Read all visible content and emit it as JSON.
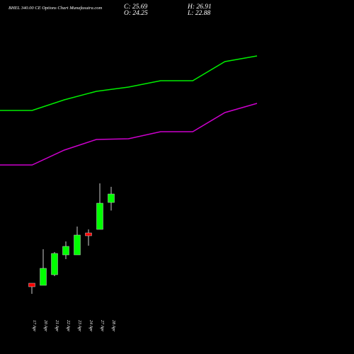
{
  "chart_data": {
    "type": "candlestick",
    "title": "BHEL 340.00 CE Options Chart Munafasutra.com",
    "ohlc_labels": {
      "close": "C: 25.69",
      "high": "H: 26.91",
      "open": "O: 24.25",
      "low": "L: 22.88"
    },
    "categories": [
      "17 Apr",
      "20 Apr",
      "21 Apr",
      "22 Apr",
      "23 Apr",
      "24 Apr",
      "27 Apr",
      "28 Apr"
    ],
    "open": [
      10.57,
      10.21,
      12.01,
      15.37,
      15.37,
      19.09,
      19.69,
      24.25
    ],
    "high": [
      10.57,
      16.33,
      15.85,
      17.65,
      20.17,
      19.69,
      27.49,
      26.91
    ],
    "low": [
      8.77,
      10.21,
      11.77,
      14.65,
      15.37,
      16.93,
      19.69,
      22.88
    ],
    "close": [
      9.97,
      13.09,
      15.61,
      16.81,
      18.73,
      18.61,
      24.13,
      25.69
    ],
    "up_color": "#00ff00",
    "down_color": "#ff0000",
    "bands": [
      {
        "color": "#00ee00",
        "values": [
          39.85,
          39.85,
          41.65,
          43.09,
          43.81,
          44.89,
          44.89,
          48.13,
          49.09
        ]
      },
      {
        "color": "#cc00cc",
        "values": [
          30.61,
          30.61,
          33.13,
          34.93,
          35.05,
          36.25,
          36.25,
          39.49,
          41.05
        ]
      }
    ],
    "ylim": [
      -1.43,
      58.57
    ]
  }
}
